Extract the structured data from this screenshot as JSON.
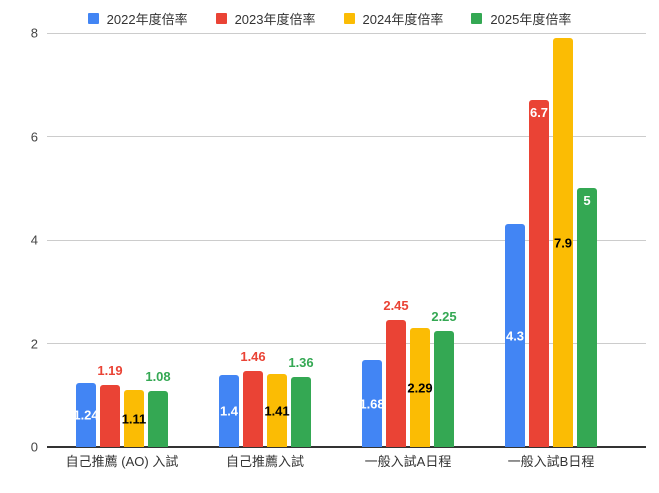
{
  "chart_data": {
    "type": "bar",
    "title": "",
    "xlabel": "",
    "ylabel": "",
    "ylim": [
      0,
      8
    ],
    "yticks": [
      0,
      2,
      4,
      6,
      8
    ],
    "grid": true,
    "legend_position": "top",
    "background_color": "#ffffff",
    "gridline_color": "#cccccc",
    "baseline_color": "#333333",
    "axis_text_color": "#444444",
    "category_text_color": "#333333",
    "categories": [
      "自己推薦 (AO) 入試",
      "自己推薦入試",
      "一般入試A日程",
      "一般入試B日程"
    ],
    "series": [
      {
        "name": "2022年度倍率",
        "color": "#4285F4",
        "values": [
          1.24,
          1.4,
          1.68,
          4.3
        ],
        "annotations": [
          {
            "text": "1.24",
            "placement": "inside-center",
            "color": "#ffffff"
          },
          {
            "text": "1.4",
            "placement": "inside-center",
            "color": "#ffffff"
          },
          {
            "text": "1.68",
            "placement": "inside-center",
            "color": "#ffffff"
          },
          {
            "text": "4.3",
            "placement": "inside-center",
            "color": "#ffffff"
          }
        ]
      },
      {
        "name": "2023年度倍率",
        "color": "#EA4335",
        "values": [
          1.19,
          1.46,
          2.45,
          6.7
        ],
        "annotations": [
          {
            "text": "1.19",
            "placement": "above",
            "color": "#EA4335"
          },
          {
            "text": "1.46",
            "placement": "above",
            "color": "#EA4335"
          },
          {
            "text": "2.45",
            "placement": "above",
            "color": "#EA4335"
          },
          {
            "text": "6.7",
            "placement": "inside-top",
            "color": "#ffffff"
          }
        ]
      },
      {
        "name": "2024年度倍率",
        "color": "#FBBC04",
        "values": [
          1.11,
          1.41,
          2.29,
          7.9
        ],
        "annotations": [
          {
            "text": "1.11",
            "placement": "inside-center",
            "color": "#000000"
          },
          {
            "text": "1.41",
            "placement": "inside-center",
            "color": "#000000"
          },
          {
            "text": "2.29",
            "placement": "inside-center",
            "color": "#000000"
          },
          {
            "text": "7.9",
            "placement": "inside-center",
            "color": "#000000"
          }
        ]
      },
      {
        "name": "2025年度倍率",
        "color": "#34A853",
        "values": [
          1.08,
          1.36,
          2.25,
          5
        ],
        "annotations": [
          {
            "text": "1.08",
            "placement": "above",
            "color": "#34A853"
          },
          {
            "text": "1.36",
            "placement": "above",
            "color": "#34A853"
          },
          {
            "text": "2.25",
            "placement": "above",
            "color": "#34A853"
          },
          {
            "text": "5",
            "placement": "inside-top",
            "color": "#ffffff"
          }
        ]
      }
    ]
  }
}
